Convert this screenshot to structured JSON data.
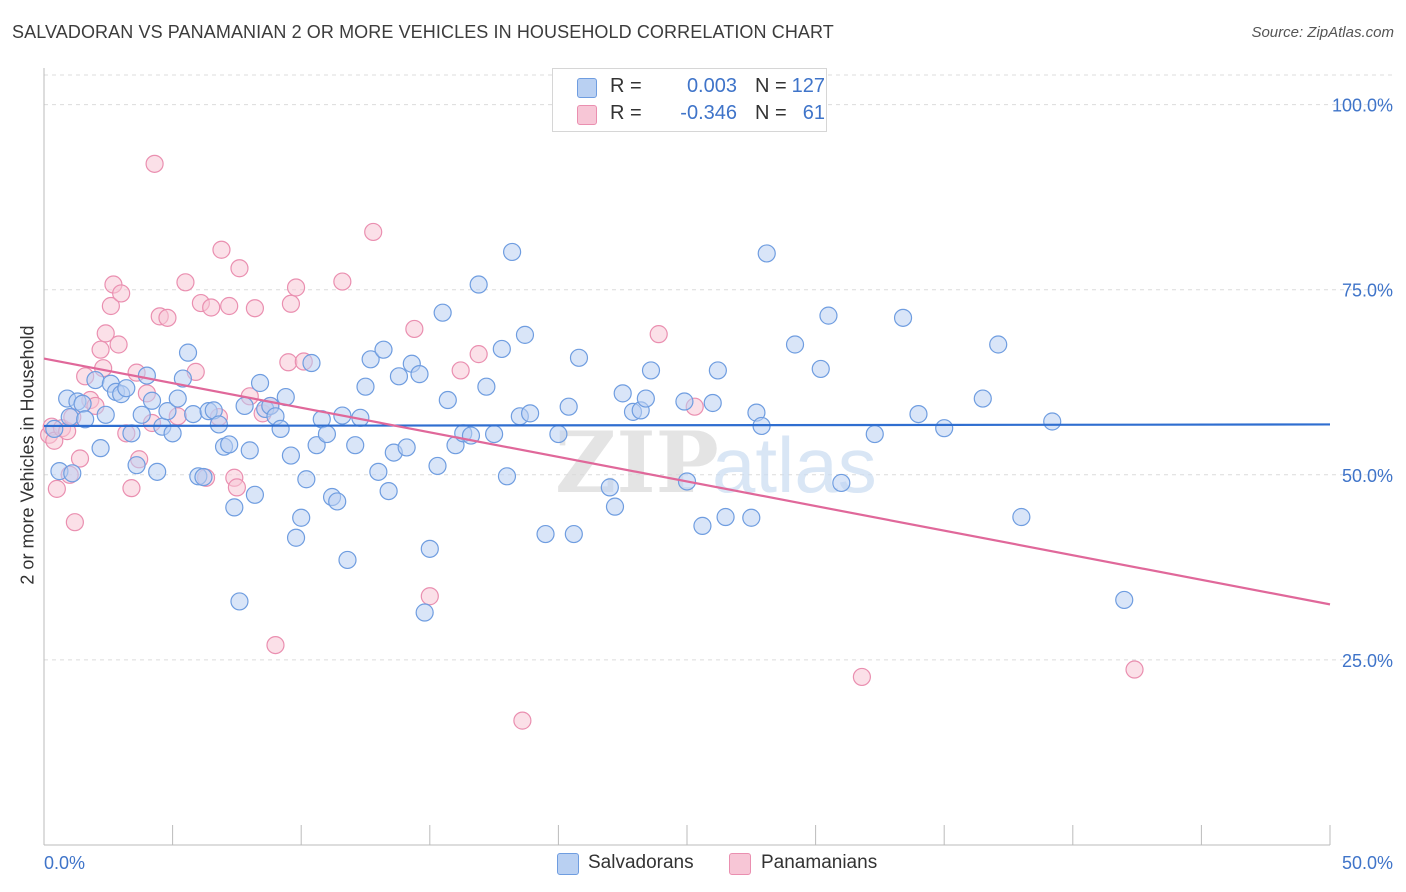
{
  "title": "SALVADORAN VS PANAMANIAN 2 OR MORE VEHICLES IN HOUSEHOLD CORRELATION CHART",
  "source": "Source: ZipAtlas.com",
  "watermark": {
    "zip": "ZIP",
    "atlas": "atlas"
  },
  "colors": {
    "blue_fill": "#b9d0f2",
    "blue_stroke": "#6f9de0",
    "blue_line": "#2f6ed0",
    "pink_fill": "#f7c6d6",
    "pink_stroke": "#ea8fb0",
    "pink_line": "#e0689a",
    "axis_text": "#3f74c9",
    "grid": "#dcdcdc"
  },
  "legend": {
    "rows": [
      {
        "r_label": "R =",
        "r_value": "0.003",
        "n_label": "N =",
        "n_value": "127"
      },
      {
        "r_label": "R =",
        "r_value": "-0.346",
        "n_label": "N =",
        "n_value": "61"
      }
    ]
  },
  "bottom_legend": {
    "series1": "Salvadorans",
    "series2": "Panamanians"
  },
  "chart_data": {
    "type": "scatter",
    "title": "SALVADORAN VS PANAMANIAN 2 OR MORE VEHICLES IN HOUSEHOLD CORRELATION CHART",
    "xlabel": "",
    "ylabel": "2 or more Vehicles in Household",
    "xlim": [
      0,
      50
    ],
    "ylim": [
      0,
      104
    ],
    "x_tick_labels": [
      "0.0%",
      "50.0%"
    ],
    "y_ticks": [
      25,
      50,
      75,
      100
    ],
    "y_tick_labels": [
      "25.0%",
      "50.0%",
      "75.0%",
      "100.0%"
    ],
    "grid": true,
    "series": [
      {
        "name": "Salvadorans",
        "trend": {
          "x": [
            0,
            50
          ],
          "y": [
            56.6,
            56.8
          ]
        },
        "points": [
          [
            0.4,
            56.2
          ],
          [
            0.6,
            50.5
          ],
          [
            0.9,
            60.3
          ],
          [
            1.0,
            57.8
          ],
          [
            1.1,
            50.2
          ],
          [
            1.3,
            59.9
          ],
          [
            1.5,
            59.6
          ],
          [
            1.6,
            57.5
          ],
          [
            2.0,
            62.8
          ],
          [
            2.2,
            53.6
          ],
          [
            2.4,
            58.1
          ],
          [
            2.6,
            62.3
          ],
          [
            2.8,
            61.2
          ],
          [
            3.0,
            60.9
          ],
          [
            3.2,
            61.7
          ],
          [
            3.4,
            55.6
          ],
          [
            3.6,
            51.3
          ],
          [
            3.8,
            58.1
          ],
          [
            4.0,
            63.4
          ],
          [
            4.2,
            60.0
          ],
          [
            4.4,
            50.4
          ],
          [
            4.6,
            56.5
          ],
          [
            4.8,
            58.6
          ],
          [
            5.0,
            55.6
          ],
          [
            5.2,
            60.3
          ],
          [
            5.4,
            63.0
          ],
          [
            5.6,
            66.5
          ],
          [
            5.8,
            58.2
          ],
          [
            6.0,
            49.8
          ],
          [
            6.2,
            49.7
          ],
          [
            6.4,
            58.6
          ],
          [
            6.6,
            58.7
          ],
          [
            6.8,
            56.8
          ],
          [
            7.0,
            53.8
          ],
          [
            7.2,
            54.1
          ],
          [
            7.4,
            45.6
          ],
          [
            7.6,
            32.9
          ],
          [
            7.8,
            59.3
          ],
          [
            8.0,
            53.3
          ],
          [
            8.2,
            47.3
          ],
          [
            8.4,
            62.4
          ],
          [
            8.6,
            58.9
          ],
          [
            8.8,
            59.3
          ],
          [
            9.0,
            57.9
          ],
          [
            9.2,
            56.2
          ],
          [
            9.4,
            60.5
          ],
          [
            9.6,
            52.6
          ],
          [
            9.8,
            41.5
          ],
          [
            10.0,
            44.2
          ],
          [
            10.2,
            49.4
          ],
          [
            10.4,
            65.1
          ],
          [
            10.6,
            54.0
          ],
          [
            10.8,
            57.5
          ],
          [
            11.0,
            55.5
          ],
          [
            11.2,
            47.0
          ],
          [
            11.4,
            46.4
          ],
          [
            11.6,
            58.0
          ],
          [
            11.8,
            38.5
          ],
          [
            12.1,
            54.0
          ],
          [
            12.3,
            57.7
          ],
          [
            12.5,
            61.9
          ],
          [
            12.7,
            65.6
          ],
          [
            13.0,
            50.4
          ],
          [
            13.2,
            66.9
          ],
          [
            13.4,
            47.8
          ],
          [
            13.6,
            53.0
          ],
          [
            13.8,
            63.3
          ],
          [
            14.1,
            53.7
          ],
          [
            14.3,
            65.0
          ],
          [
            14.6,
            63.6
          ],
          [
            14.8,
            31.4
          ],
          [
            15.0,
            40.0
          ],
          [
            15.3,
            51.2
          ],
          [
            15.5,
            71.9
          ],
          [
            15.7,
            60.1
          ],
          [
            16.0,
            54.0
          ],
          [
            16.3,
            55.6
          ],
          [
            16.6,
            55.3
          ],
          [
            16.9,
            75.7
          ],
          [
            17.2,
            61.9
          ],
          [
            17.5,
            55.5
          ],
          [
            17.8,
            67.0
          ],
          [
            18.0,
            49.8
          ],
          [
            18.2,
            80.1
          ],
          [
            18.5,
            57.9
          ],
          [
            18.7,
            68.9
          ],
          [
            18.9,
            58.3
          ],
          [
            19.5,
            42.0
          ],
          [
            20.0,
            55.5
          ],
          [
            20.4,
            59.2
          ],
          [
            20.6,
            42.0
          ],
          [
            20.8,
            65.8
          ],
          [
            22.0,
            48.3
          ],
          [
            22.2,
            45.7
          ],
          [
            22.5,
            61.0
          ],
          [
            22.9,
            58.5
          ],
          [
            23.2,
            58.7
          ],
          [
            23.4,
            60.3
          ],
          [
            23.6,
            64.1
          ],
          [
            24.9,
            59.9
          ],
          [
            25.0,
            49.1
          ],
          [
            25.6,
            43.1
          ],
          [
            26.0,
            59.7
          ],
          [
            26.2,
            64.1
          ],
          [
            26.5,
            44.3
          ],
          [
            27.5,
            44.2
          ],
          [
            27.7,
            58.4
          ],
          [
            27.9,
            56.6
          ],
          [
            28.1,
            79.9
          ],
          [
            29.2,
            67.6
          ],
          [
            30.2,
            64.3
          ],
          [
            30.5,
            71.5
          ],
          [
            31.0,
            48.9
          ],
          [
            32.3,
            55.5
          ],
          [
            33.4,
            71.2
          ],
          [
            34.0,
            58.2
          ],
          [
            35.0,
            56.3
          ],
          [
            36.5,
            60.3
          ],
          [
            37.1,
            67.6
          ],
          [
            38.0,
            44.3
          ],
          [
            39.2,
            57.2
          ],
          [
            42.0,
            33.1
          ]
        ]
      },
      {
        "name": "Panamanians",
        "trend": {
          "x": [
            0,
            50
          ],
          "y": [
            65.7,
            32.5
          ]
        },
        "points": [
          [
            0.2,
            55.4
          ],
          [
            0.3,
            56.5
          ],
          [
            0.4,
            54.6
          ],
          [
            0.5,
            48.1
          ],
          [
            0.7,
            56.3
          ],
          [
            0.9,
            55.9
          ],
          [
            1.0,
            50.0
          ],
          [
            1.1,
            57.8
          ],
          [
            1.2,
            43.6
          ],
          [
            1.4,
            52.2
          ],
          [
            1.6,
            63.3
          ],
          [
            1.8,
            60.1
          ],
          [
            2.0,
            59.3
          ],
          [
            2.2,
            66.9
          ],
          [
            2.3,
            64.4
          ],
          [
            2.4,
            69.1
          ],
          [
            2.6,
            72.8
          ],
          [
            2.7,
            75.7
          ],
          [
            2.9,
            67.6
          ],
          [
            3.0,
            74.5
          ],
          [
            3.2,
            55.6
          ],
          [
            3.4,
            48.2
          ],
          [
            3.6,
            63.8
          ],
          [
            3.7,
            52.1
          ],
          [
            4.0,
            61.0
          ],
          [
            4.2,
            57.0
          ],
          [
            4.3,
            92.0
          ],
          [
            4.5,
            71.4
          ],
          [
            4.8,
            71.2
          ],
          [
            5.2,
            57.9
          ],
          [
            5.5,
            76.0
          ],
          [
            5.9,
            63.9
          ],
          [
            6.1,
            73.2
          ],
          [
            6.3,
            49.6
          ],
          [
            6.5,
            72.6
          ],
          [
            6.8,
            57.8
          ],
          [
            6.9,
            80.4
          ],
          [
            7.2,
            72.8
          ],
          [
            7.4,
            49.6
          ],
          [
            7.5,
            48.3
          ],
          [
            7.6,
            77.9
          ],
          [
            8.0,
            60.6
          ],
          [
            8.2,
            72.5
          ],
          [
            8.5,
            58.3
          ],
          [
            8.8,
            59.3
          ],
          [
            9.0,
            27.0
          ],
          [
            9.5,
            65.2
          ],
          [
            9.6,
            73.1
          ],
          [
            9.8,
            75.3
          ],
          [
            10.1,
            65.3
          ],
          [
            11.6,
            76.1
          ],
          [
            12.8,
            82.8
          ],
          [
            14.4,
            69.7
          ],
          [
            15.0,
            33.6
          ],
          [
            16.2,
            64.1
          ],
          [
            16.9,
            66.3
          ],
          [
            18.6,
            16.8
          ],
          [
            23.9,
            69.0
          ],
          [
            25.3,
            59.2
          ],
          [
            31.8,
            22.7
          ],
          [
            42.4,
            23.7
          ]
        ]
      }
    ]
  }
}
